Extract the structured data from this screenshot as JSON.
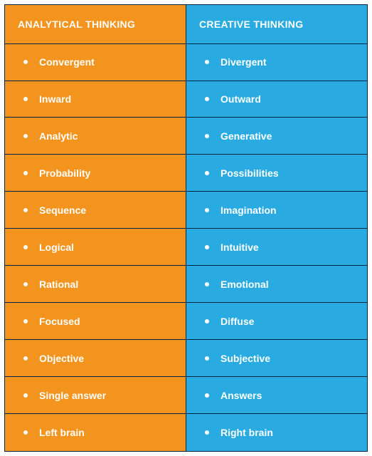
{
  "table": {
    "border_color": "#00254a",
    "columns": [
      {
        "header": "ANALYTICAL THINKING",
        "bg_color": "#f3941e",
        "text_color": "#ffffff",
        "items": [
          "Convergent",
          "Inward",
          "Analytic",
          "Probability",
          "Sequence",
          "Logical",
          "Rational",
          "Focused",
          "Objective",
          "Single answer",
          "Left brain"
        ]
      },
      {
        "header": "CREATIVE THINKING",
        "bg_color": "#29abe2",
        "text_color": "#ffffff",
        "items": [
          "Divergent",
          "Outward",
          "Generative",
          "Possibilities",
          "Imagination",
          "Intuitive",
          "Emotional",
          "Diffuse",
          "Subjective",
          "Answers",
          "Right brain"
        ]
      }
    ]
  }
}
